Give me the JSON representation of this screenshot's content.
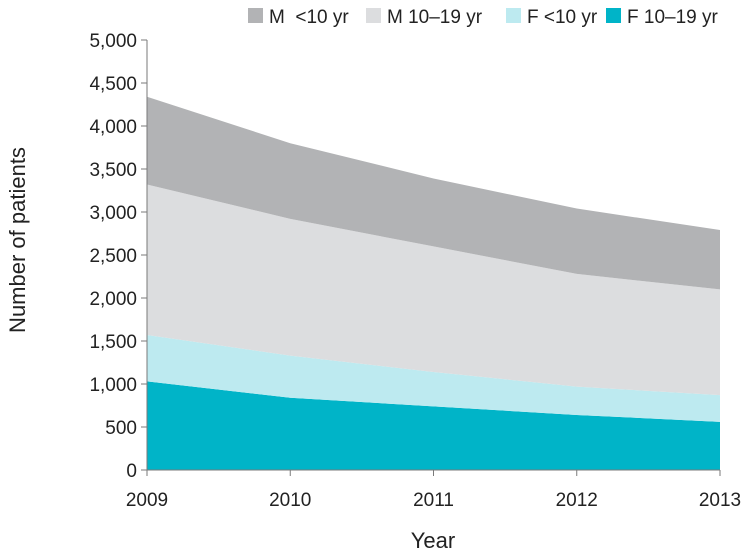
{
  "chart_data": {
    "type": "area",
    "stacked": true,
    "title": "",
    "xlabel": "Year",
    "ylabel": "Number of patients",
    "x": [
      "2009",
      "2010",
      "2011",
      "2012",
      "2013"
    ],
    "ylim": [
      0,
      5000
    ],
    "yticks": [
      "0",
      "500",
      "1,000",
      "1,500",
      "2,000",
      "2,500",
      "3,000",
      "3,500",
      "4,000",
      "4,500",
      "5,000"
    ],
    "grid": false,
    "legend_position": "top",
    "series": [
      {
        "name": "F 10–19 yr",
        "color": "#00b4c8",
        "values": [
          1030,
          840,
          740,
          640,
          560
        ]
      },
      {
        "name": "F <10 yr",
        "color": "#bdeaf0",
        "values": [
          540,
          490,
          400,
          330,
          310
        ]
      },
      {
        "name": "M 10–19 yr",
        "color": "#dcdddf",
        "values": [
          1750,
          1590,
          1460,
          1310,
          1230
        ]
      },
      {
        "name": "M  <10 yr",
        "color": "#b2b3b5",
        "values": [
          1020,
          880,
          790,
          760,
          690
        ]
      }
    ],
    "legend_order": [
      3,
      2,
      1,
      0
    ]
  }
}
